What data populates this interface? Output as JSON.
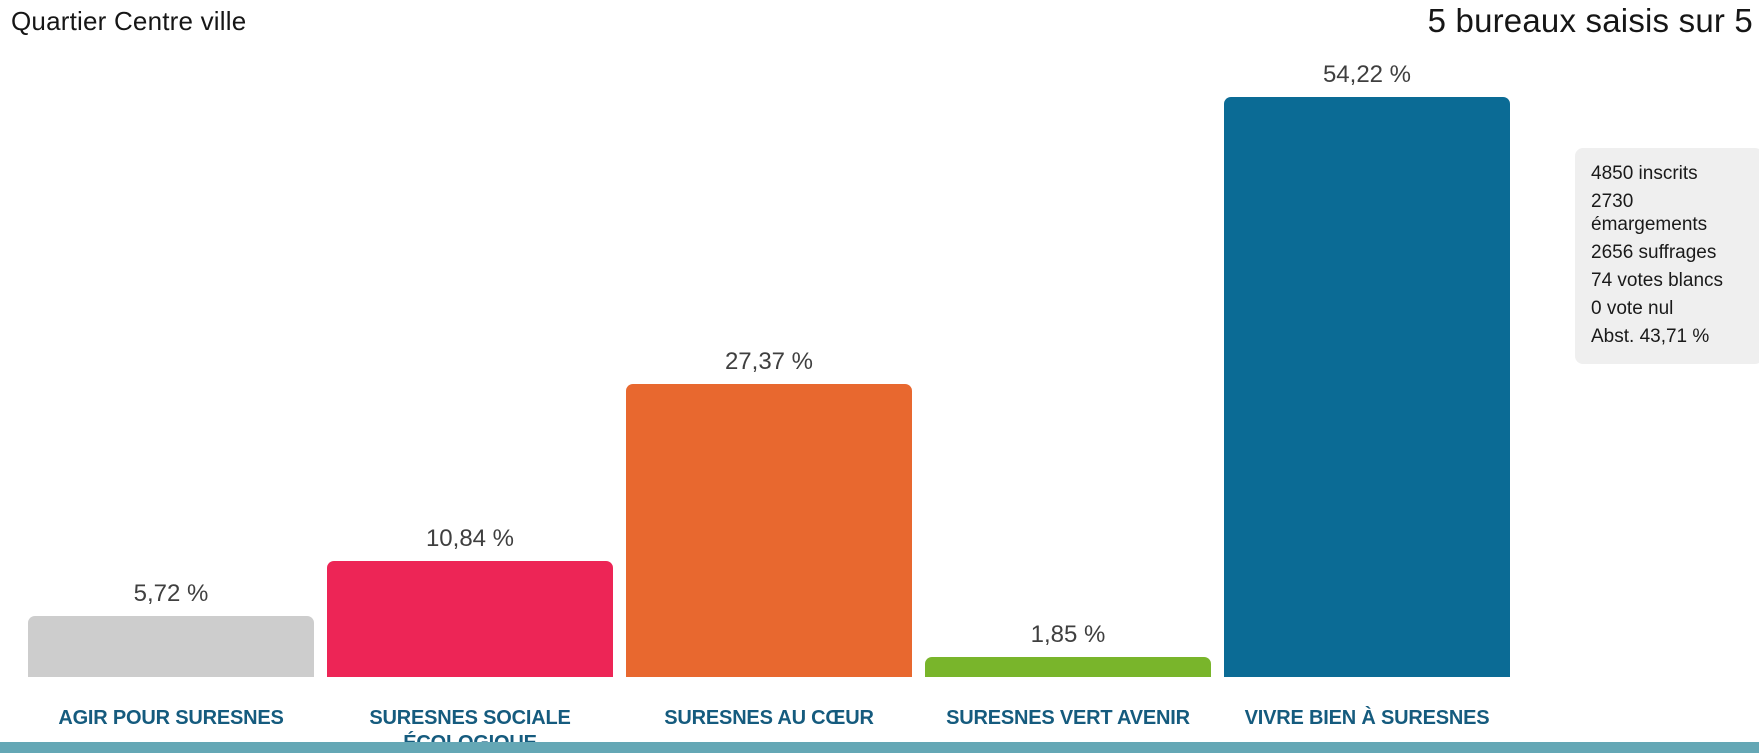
{
  "header": {
    "title": "Quartier Centre ville",
    "bureaux_status": "5 bureaux saisis sur 5"
  },
  "chart_data": {
    "type": "bar",
    "title": "Quartier Centre ville",
    "categories": [
      "AGIR POUR SURESNES",
      "SURESNES SOCIALE ÉCOLOGIQUE",
      "SURESNES AU CŒUR",
      "SURESNES VERT AVENIR",
      "VIVRE BIEN À SURESNES"
    ],
    "values": [
      5.72,
      10.84,
      27.37,
      1.85,
      54.22
    ],
    "value_labels": [
      "5,72 %",
      "10,84 %",
      "27,37 %",
      "1,85 %",
      "54,22 %"
    ],
    "bar_colors": [
      "#cdcdcd",
      "#ed2556",
      "#e8682f",
      "#79b52b",
      "#0b6b95"
    ],
    "xlabel": "",
    "ylabel": "",
    "ylim": [
      0,
      60
    ],
    "grid": false,
    "legend": "none",
    "value_label_position": "above-bars",
    "category_label_color": "#155b7e",
    "bottom_strip_color": "#64a7b5"
  },
  "stats_panel": {
    "lines": [
      "4850 inscrits",
      "2730 émargements",
      "2656 suffrages",
      "74 votes blancs",
      "0 vote nul",
      "Abst. 43,71 %"
    ]
  }
}
